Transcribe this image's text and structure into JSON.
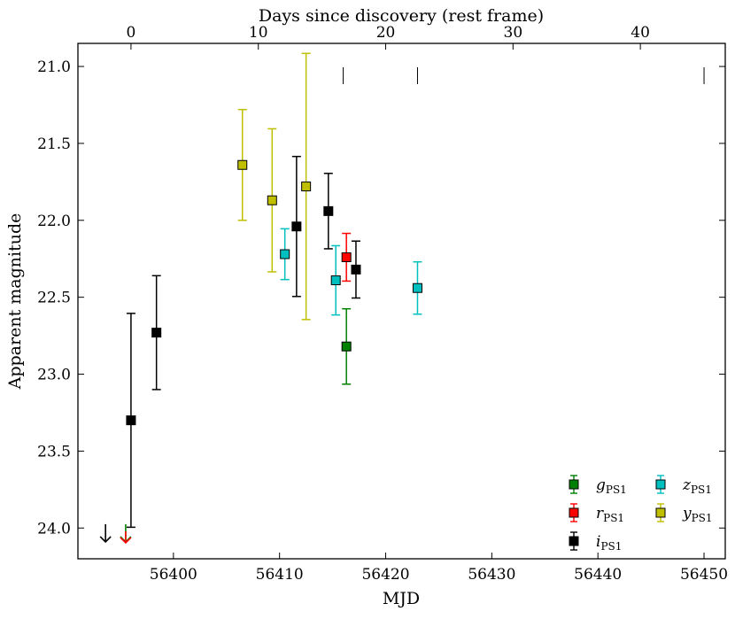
{
  "chart_data": {
    "type": "scatter",
    "xlabel": "MJD",
    "ylabel": "Apparent magnitude",
    "top_xlabel": "Days since discovery (rest frame)",
    "xlim": [
      56391,
      56452
    ],
    "ylim": [
      24.2,
      20.85
    ],
    "x_ticks": [
      56400,
      56410,
      56420,
      56430,
      56440,
      56450
    ],
    "y_ticks": [
      21.0,
      21.5,
      22.0,
      22.5,
      23.0,
      23.5,
      24.0
    ],
    "y_tick_labels": [
      "21.0",
      "21.5",
      "22.0",
      "22.5",
      "23.0",
      "23.5",
      "24.0"
    ],
    "top_ticks_days": [
      0,
      10,
      20,
      30,
      40
    ],
    "top_axis_mjd_at_day0": 56396.0,
    "top_axis_mjd_per_day": 1.2,
    "spectra_epochs_mjd": [
      56416.0,
      56423.0,
      56450.0
    ],
    "legend_position": "lower-right",
    "series": [
      {
        "name": "g",
        "subscript": "PS1",
        "color": "#008000",
        "ecolor": "#008000",
        "points": [
          {
            "x": 56416.3,
            "y": 22.82,
            "err": 0.245
          }
        ],
        "upper_limits": [
          {
            "x": 56395.5,
            "y": 24.05
          }
        ]
      },
      {
        "name": "r",
        "subscript": "PS1",
        "color": "#ff0000",
        "ecolor": "#ff0000",
        "points": [
          {
            "x": 56416.3,
            "y": 22.24,
            "err": 0.155
          }
        ],
        "upper_limits": [
          {
            "x": 56395.5,
            "y": 24.05
          }
        ]
      },
      {
        "name": "i",
        "subscript": "PS1",
        "color": "#000000",
        "ecolor": "#000000",
        "points": [
          {
            "x": 56396.0,
            "y": 23.3,
            "err": 0.695
          },
          {
            "x": 56398.4,
            "y": 22.73,
            "err": 0.37
          },
          {
            "x": 56411.6,
            "y": 22.04,
            "err": 0.455
          },
          {
            "x": 56414.6,
            "y": 21.94,
            "err": 0.245
          },
          {
            "x": 56417.2,
            "y": 22.32,
            "err": 0.185
          }
        ],
        "upper_limits": [
          {
            "x": 56393.6,
            "y": 24.05
          }
        ]
      },
      {
        "name": "z",
        "subscript": "PS1",
        "color": "#00bfbf",
        "ecolor": "#00bfbf",
        "points": [
          {
            "x": 56410.5,
            "y": 22.22,
            "err": 0.165
          },
          {
            "x": 56415.3,
            "y": 22.39,
            "err": 0.225
          },
          {
            "x": 56423.0,
            "y": 22.44,
            "err": 0.17
          }
        ],
        "upper_limits": []
      },
      {
        "name": "y",
        "subscript": "PS1",
        "color": "#bfbf00",
        "ecolor": "#bfbf00",
        "points": [
          {
            "x": 56406.5,
            "y": 21.64,
            "err": 0.36
          },
          {
            "x": 56409.3,
            "y": 21.87,
            "err": 0.465
          },
          {
            "x": 56412.5,
            "y": 21.78,
            "err": 0.865
          }
        ],
        "upper_limits": []
      }
    ]
  }
}
